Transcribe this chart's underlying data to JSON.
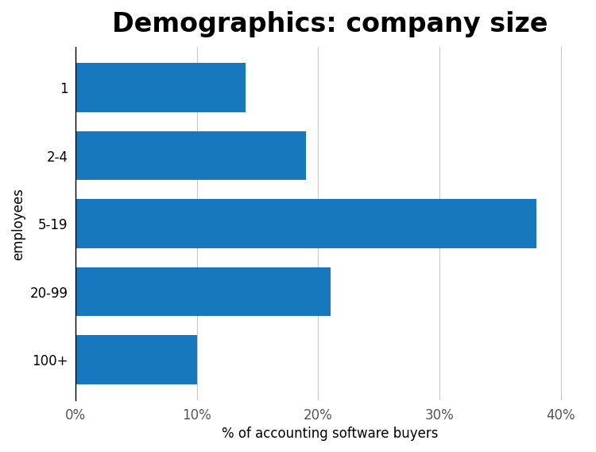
{
  "title": "Demographics: company size",
  "categories": [
    "100+",
    "20-99",
    "5-19",
    "2-4",
    "1"
  ],
  "values": [
    10,
    21,
    38,
    19,
    14
  ],
  "bar_color": "#1878be",
  "xlabel": "% of accounting software buyers",
  "ylabel": "employees",
  "xlim": [
    0,
    42
  ],
  "xticks": [
    0,
    10,
    20,
    30,
    40
  ],
  "xtick_labels": [
    "0%",
    "10%",
    "20%",
    "30%",
    "40%"
  ],
  "title_fontsize": 24,
  "axis_label_fontsize": 12,
  "tick_fontsize": 12,
  "bar_height": 0.72,
  "background_color": "#ffffff",
  "grid_color": "#c8c8c8"
}
